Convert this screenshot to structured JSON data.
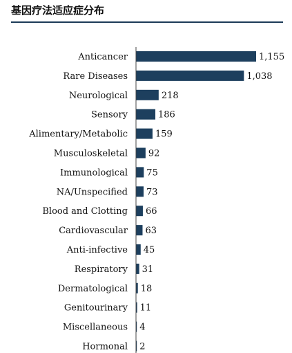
{
  "chart_data": {
    "type": "bar",
    "orientation": "horizontal",
    "title": "基因疗法适应症分布",
    "categories": [
      "Anticancer",
      "Rare Diseases",
      "Neurological",
      "Sensory",
      "Alimentary/Metabolic",
      "Musculoskeletal",
      "Immunological",
      "NA/Unspecified",
      "Blood and Clotting",
      "Cardiovascular",
      "Anti-infective",
      "Respiratory",
      "Dermatological",
      "Genitourinary",
      "Miscellaneous",
      "Hormonal"
    ],
    "values": [
      1155,
      1038,
      218,
      186,
      159,
      92,
      75,
      73,
      66,
      63,
      45,
      31,
      18,
      11,
      4,
      2
    ],
    "data_labels": [
      "1,155",
      "1,038",
      "218",
      "186",
      "159",
      "92",
      "75",
      "73",
      "66",
      "63",
      "45",
      "31",
      "18",
      "11",
      "4",
      "2"
    ],
    "xlim": [
      0,
      1155
    ],
    "grid": false,
    "legend": "none",
    "bar_color": "#1d3f5e"
  }
}
